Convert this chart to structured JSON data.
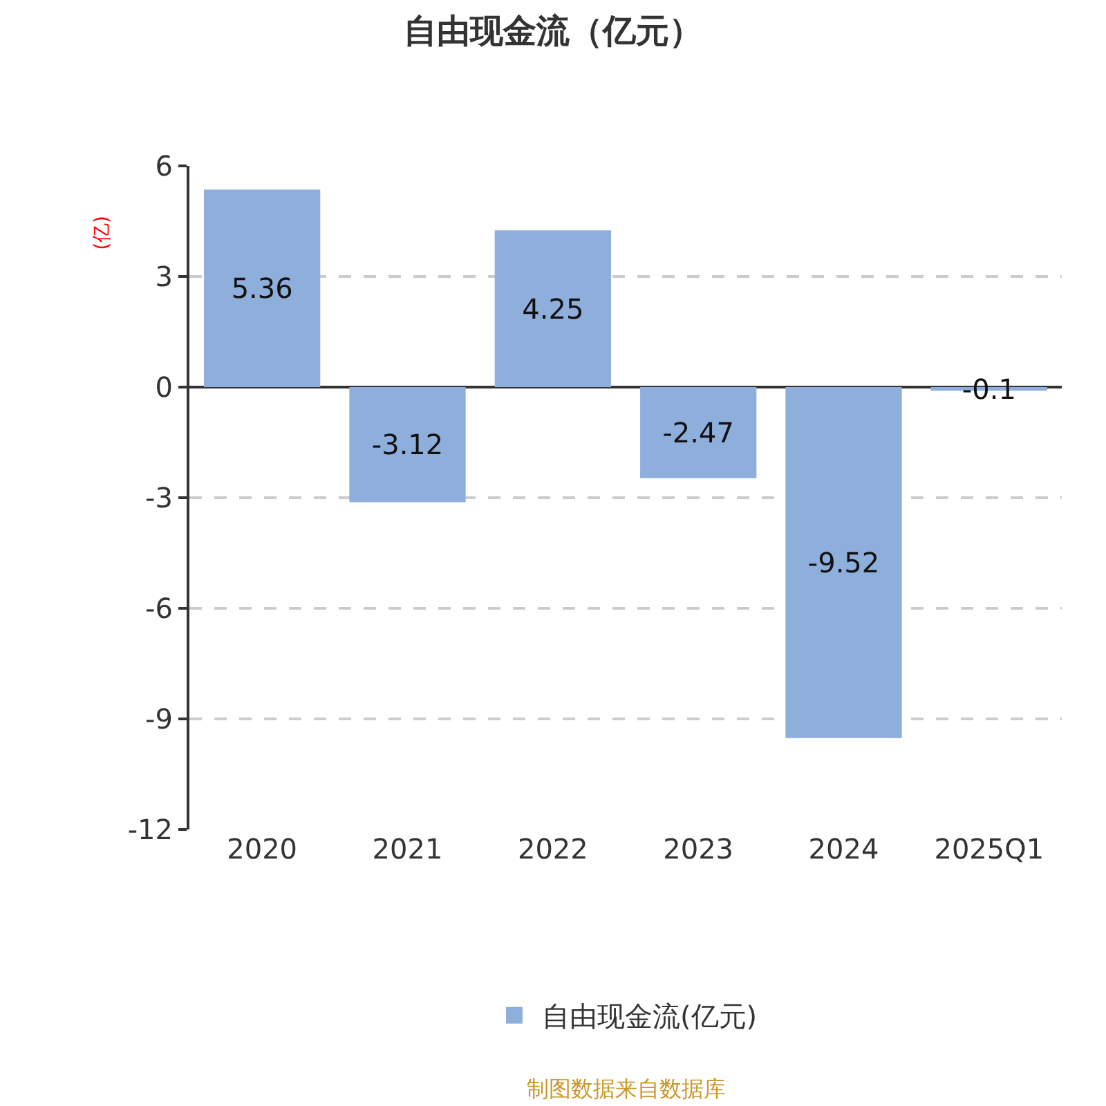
{
  "chart_data": {
    "type": "bar",
    "title": "自由现金流（亿元）",
    "ylabel": "(亿)",
    "categories": [
      "2020",
      "2021",
      "2022",
      "2023",
      "2024",
      "2025Q1"
    ],
    "series": [
      {
        "name": "自由现金流(亿元)",
        "color": "#8eaedb",
        "values": [
          5.36,
          -3.12,
          4.25,
          -2.47,
          -9.52,
          -0.1
        ]
      }
    ],
    "ylim": [
      -12,
      6
    ],
    "yticks": [
      -12,
      -9,
      -6,
      -3,
      0,
      3,
      6
    ],
    "grid": "y",
    "legend": "bottom",
    "data_labels": true,
    "annotations": [
      "制图数据来自数据库"
    ]
  }
}
